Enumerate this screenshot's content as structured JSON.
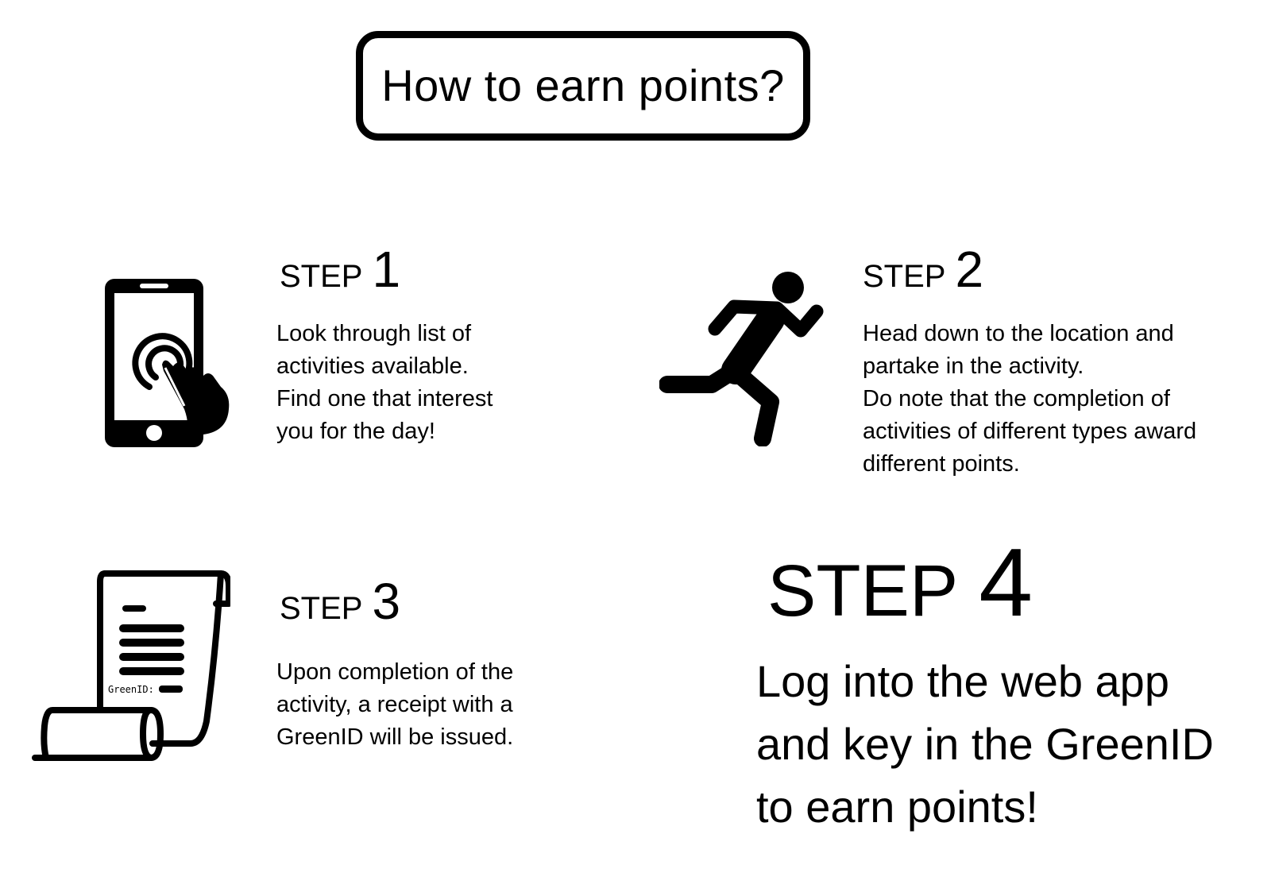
{
  "title": "How to earn points?",
  "steps": [
    {
      "word": "STEP",
      "number": "1",
      "icon": "smartphone-tap-icon",
      "lines": [
        "Look through list of",
        "activities available.",
        "Find one that interest",
        "you for the day!"
      ]
    },
    {
      "word": "STEP",
      "number": "2",
      "icon": "running-person-icon",
      "lines": [
        "Head down to the location and",
        "partake in the activity.",
        "Do note that the completion of",
        "activities of different types award",
        "different points."
      ]
    },
    {
      "word": "STEP",
      "number": "3",
      "icon": "receipt-scroll-icon",
      "icon_label": "GreenID:",
      "lines": [
        "Upon completion of the",
        "activity, a receipt with a",
        "GreenID will be issued."
      ]
    },
    {
      "word": "STEP",
      "number": "4",
      "lines": [
        "Log into the web app",
        "and key in the GreenID",
        "to earn points!"
      ]
    }
  ]
}
